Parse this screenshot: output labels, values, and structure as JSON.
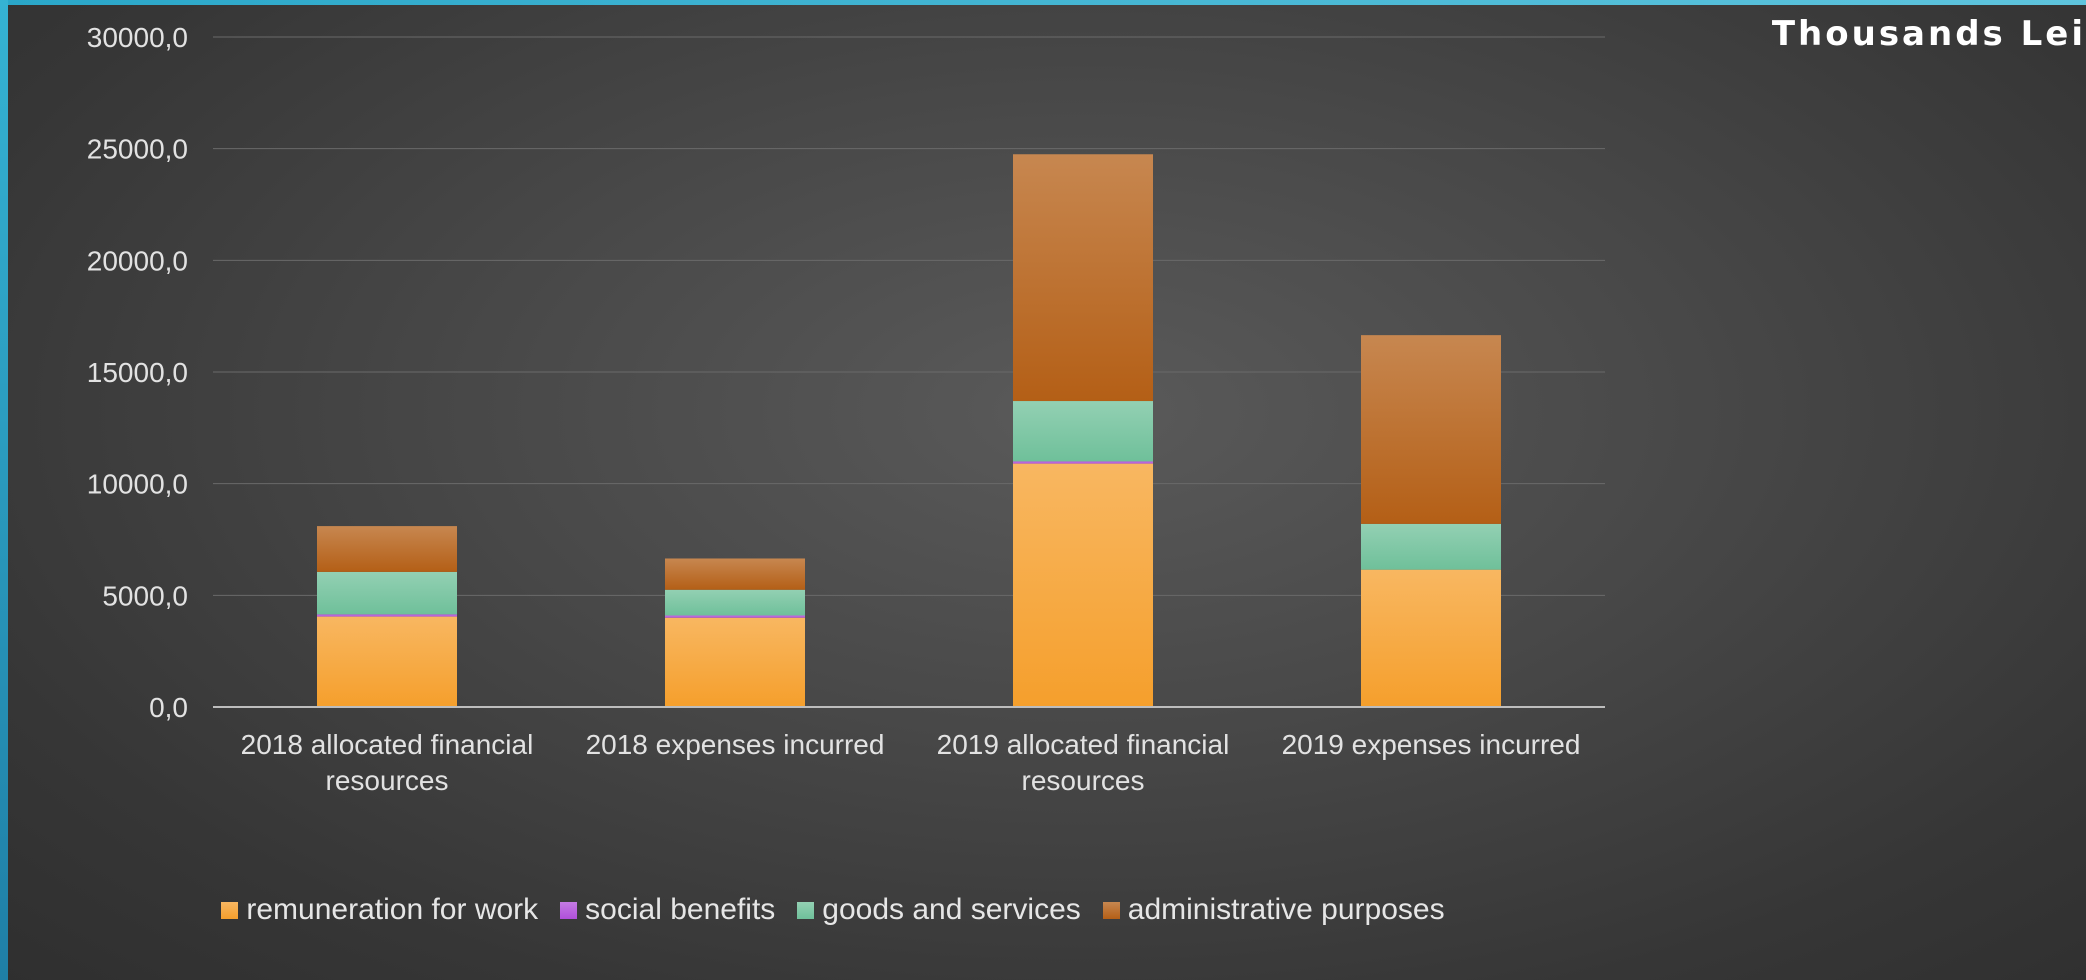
{
  "unit_label": "Thousands Lei",
  "chart_data": {
    "type": "bar",
    "stacked": true,
    "title": "",
    "xlabel": "",
    "ylabel": "",
    "ylim": [
      0,
      30000
    ],
    "yticks": [
      0,
      5000,
      10000,
      15000,
      20000,
      25000,
      30000
    ],
    "ytick_labels": [
      "0,0",
      "5000,0",
      "10000,0",
      "15000,0",
      "20000,0",
      "25000,0",
      "30000,0"
    ],
    "grid": true,
    "legend_position": "bottom",
    "categories": [
      [
        "2018 allocated financial",
        "resources"
      ],
      [
        "2018 expenses incurred"
      ],
      [
        "2019  allocated financial",
        "resources"
      ],
      [
        "2019 expenses incurred"
      ]
    ],
    "series": [
      {
        "name": "remuneration for work",
        "color": "#f59f2c",
        "values": [
          4050,
          4000,
          10900,
          6150
        ]
      },
      {
        "name": "social benefits",
        "color": "#b04fd9",
        "values": [
          100,
          100,
          100,
          0
        ]
      },
      {
        "name": "goods and services",
        "color": "#6fc09a",
        "values": [
          1900,
          1150,
          2700,
          2050
        ]
      },
      {
        "name": "administrative purposes",
        "color": "#b45f16",
        "values": [
          2050,
          1400,
          11050,
          8450
        ]
      }
    ]
  }
}
